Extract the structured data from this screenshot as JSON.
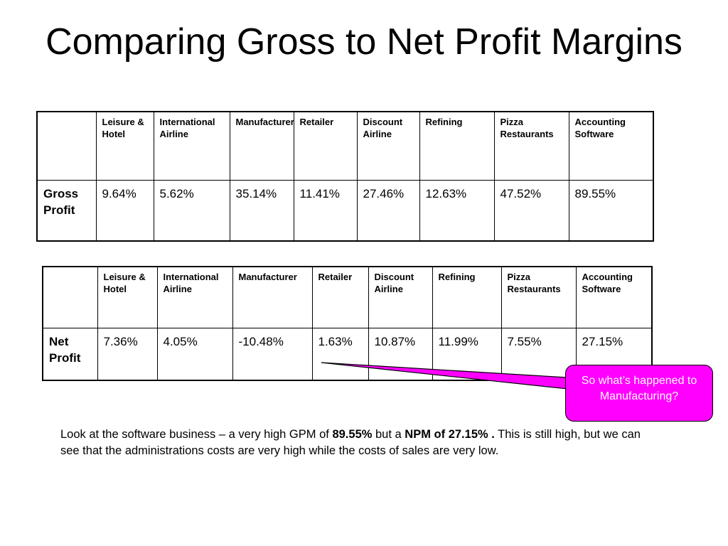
{
  "slide": {
    "title": "Comparing Gross to Net Profit Margins"
  },
  "gross_table": {
    "headers": [
      "Leisure & Hotel",
      "International Airline",
      "Manufacturer",
      "Retailer",
      "Discount Airline",
      "Refining",
      "Pizza Restaurants",
      "Accounting Software"
    ],
    "row_label": "Gross Profit",
    "values": [
      "9.64%",
      "5.62%",
      "35.14%",
      "11.41%",
      "27.46%",
      "12.63%",
      "47.52%",
      "89.55%"
    ]
  },
  "net_table": {
    "headers": [
      "Leisure & Hotel",
      "International Airline",
      "Manufacturer",
      "Retailer",
      "Discount Airline",
      "Refining",
      "Pizza Restaurants",
      "Accounting Software"
    ],
    "row_label": "Net Profit",
    "values": [
      "7.36%",
      "4.05%",
      "-10.48%",
      "1.63%",
      "10.87%",
      "11.99%",
      "7.55%",
      "27.15%"
    ]
  },
  "callout": {
    "text": "So what’s happened to Manufacturing?",
    "fill_color": "#ff00ff"
  },
  "note": {
    "part1": "Look at the software business – a very high GPM of ",
    "bold1": "89.55%",
    "part2": "  but a ",
    "bold2": "NPM of 27.15% .",
    "part3": "  This is still high, but we can see that the administrations costs are very high while the costs of sales are very low."
  }
}
